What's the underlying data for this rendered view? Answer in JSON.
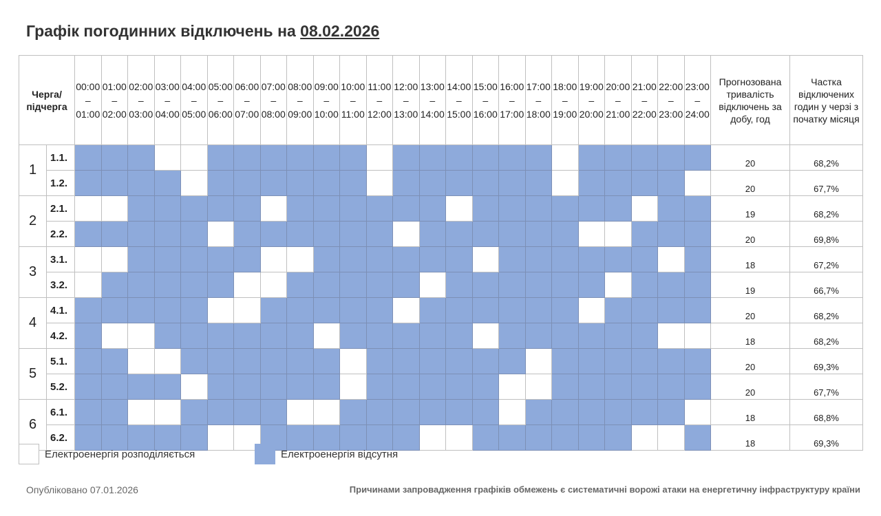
{
  "title": {
    "prefix": "Графік погодинних відключень на",
    "date": "08.02.2026"
  },
  "table": {
    "header_queue": "Черга/ підчерга",
    "header_duration": "Прогнозована тривалість відключень за добу, год",
    "header_share": "Частка відключених годин у черзі з початку місяця",
    "hours": [
      "00:00 – 01:00",
      "01:00 – 02:00",
      "02:00 – 03:00",
      "03:00 – 04:00",
      "04:00 – 05:00",
      "05:00 – 06:00",
      "06:00 – 07:00",
      "07:00 – 08:00",
      "08:00 – 09:00",
      "09:00 – 10:00",
      "10:00 – 11:00",
      "11:00 – 12:00",
      "12:00 – 13:00",
      "13:00 – 14:00",
      "14:00 – 15:00",
      "15:00 – 16:00",
      "16:00 – 17:00",
      "17:00 – 18:00",
      "18:00 – 19:00",
      "19:00 – 20:00",
      "20:00 – 21:00",
      "21:00 – 22:00",
      "22:00 – 23:00",
      "23:00 – 24:00"
    ],
    "groups": [
      {
        "label": "1",
        "rows": [
          {
            "label": "1.1.",
            "hours": [
              1,
              1,
              1,
              0,
              0,
              1,
              1,
              1,
              1,
              1,
              1,
              0,
              1,
              1,
              1,
              1,
              1,
              1,
              0,
              1,
              1,
              1,
              1,
              1
            ],
            "duration": "20",
            "share": "68,2%"
          },
          {
            "label": "1.2.",
            "hours": [
              1,
              1,
              1,
              1,
              0,
              1,
              1,
              1,
              1,
              1,
              1,
              0,
              1,
              1,
              1,
              1,
              1,
              1,
              0,
              1,
              1,
              1,
              1,
              0
            ],
            "duration": "20",
            "share": "67,7%"
          }
        ]
      },
      {
        "label": "2",
        "rows": [
          {
            "label": "2.1.",
            "hours": [
              0,
              0,
              1,
              1,
              1,
              1,
              1,
              0,
              1,
              1,
              1,
              1,
              1,
              1,
              0,
              1,
              1,
              1,
              1,
              1,
              1,
              0,
              1,
              1
            ],
            "duration": "19",
            "share": "68,2%"
          },
          {
            "label": "2.2.",
            "hours": [
              1,
              1,
              1,
              1,
              1,
              0,
              1,
              1,
              1,
              1,
              1,
              1,
              0,
              1,
              1,
              1,
              1,
              1,
              1,
              0,
              0,
              1,
              1,
              1
            ],
            "duration": "20",
            "share": "69,8%"
          }
        ]
      },
      {
        "label": "3",
        "rows": [
          {
            "label": "3.1.",
            "hours": [
              0,
              0,
              1,
              1,
              1,
              1,
              1,
              0,
              0,
              1,
              1,
              1,
              1,
              1,
              1,
              0,
              1,
              1,
              1,
              1,
              1,
              1,
              0,
              1
            ],
            "duration": "18",
            "share": "67,2%"
          },
          {
            "label": "3.2.",
            "hours": [
              0,
              1,
              1,
              1,
              1,
              1,
              0,
              0,
              1,
              1,
              1,
              1,
              1,
              0,
              1,
              1,
              1,
              1,
              1,
              1,
              0,
              1,
              1,
              1
            ],
            "duration": "19",
            "share": "66,7%"
          }
        ]
      },
      {
        "label": "4",
        "rows": [
          {
            "label": "4.1.",
            "hours": [
              1,
              1,
              1,
              1,
              1,
              0,
              0,
              1,
              1,
              1,
              1,
              1,
              0,
              1,
              1,
              1,
              1,
              1,
              1,
              0,
              1,
              1,
              1,
              1
            ],
            "duration": "20",
            "share": "68,2%"
          },
          {
            "label": "4.2.",
            "hours": [
              1,
              0,
              0,
              1,
              1,
              1,
              1,
              1,
              1,
              0,
              1,
              1,
              1,
              1,
              1,
              0,
              1,
              1,
              1,
              1,
              1,
              1,
              0,
              0
            ],
            "duration": "18",
            "share": "68,2%"
          }
        ]
      },
      {
        "label": "5",
        "rows": [
          {
            "label": "5.1.",
            "hours": [
              1,
              1,
              0,
              0,
              1,
              1,
              1,
              1,
              1,
              1,
              0,
              1,
              1,
              1,
              1,
              1,
              1,
              0,
              1,
              1,
              1,
              1,
              1,
              1
            ],
            "duration": "20",
            "share": "69,3%"
          },
          {
            "label": "5.2.",
            "hours": [
              1,
              1,
              1,
              1,
              0,
              1,
              1,
              1,
              1,
              1,
              0,
              1,
              1,
              1,
              1,
              1,
              0,
              0,
              1,
              1,
              1,
              1,
              1,
              1
            ],
            "duration": "20",
            "share": "67,7%"
          }
        ]
      },
      {
        "label": "6",
        "rows": [
          {
            "label": "6.1.",
            "hours": [
              1,
              1,
              0,
              0,
              1,
              1,
              1,
              1,
              0,
              0,
              1,
              1,
              1,
              1,
              1,
              1,
              0,
              1,
              1,
              1,
              1,
              1,
              1,
              0
            ],
            "duration": "18",
            "share": "68,8%"
          },
          {
            "label": "6.2.",
            "hours": [
              1,
              1,
              1,
              1,
              1,
              0,
              0,
              1,
              1,
              1,
              1,
              1,
              1,
              0,
              0,
              1,
              1,
              1,
              1,
              1,
              1,
              0,
              0,
              1
            ],
            "duration": "18",
            "share": "69,3%"
          }
        ]
      }
    ]
  },
  "legend": {
    "on_label": "Електроенергія розподіляється",
    "off_label": "Електроенергія відсутня",
    "on_color": "#ffffff",
    "off_color": "#8eaadb"
  },
  "footer": {
    "published": "Опубліковано 07.01.2026",
    "reason": "Причинами запровадження графіків обмежень є систематичні ворожі атаки на енергетичну інфраструктуру країни"
  }
}
